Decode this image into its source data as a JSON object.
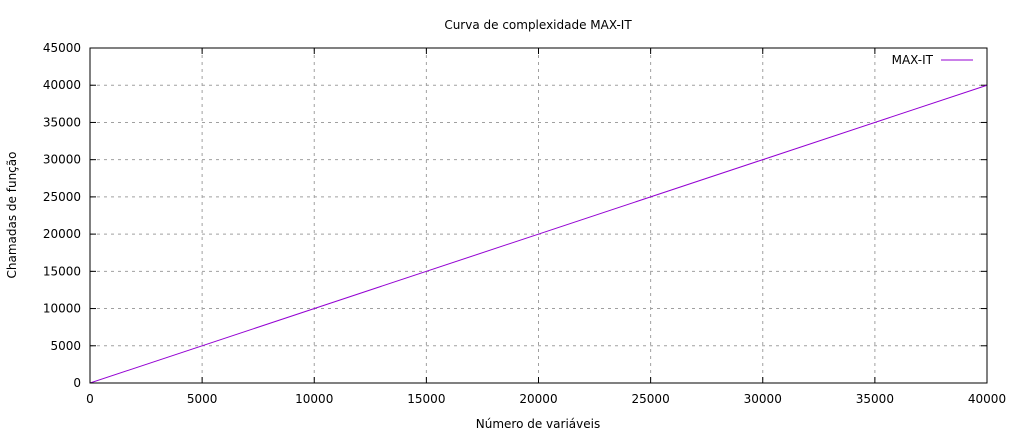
{
  "chart_data": {
    "type": "line",
    "title": "Curva de complexidade MAX-IT",
    "xlabel": "Número de variáveis",
    "ylabel": "Chamadas de função",
    "xlim": [
      0,
      40000
    ],
    "ylim": [
      0,
      45000
    ],
    "x_ticks": [
      0,
      5000,
      10000,
      15000,
      20000,
      25000,
      30000,
      35000,
      40000
    ],
    "y_ticks": [
      0,
      5000,
      10000,
      15000,
      20000,
      25000,
      30000,
      35000,
      40000,
      45000
    ],
    "grid": true,
    "legend_position": "top-right",
    "series": [
      {
        "name": "MAX-IT",
        "color": "#9400d3",
        "x": [
          0,
          40000
        ],
        "y": [
          0,
          40000
        ]
      }
    ]
  }
}
